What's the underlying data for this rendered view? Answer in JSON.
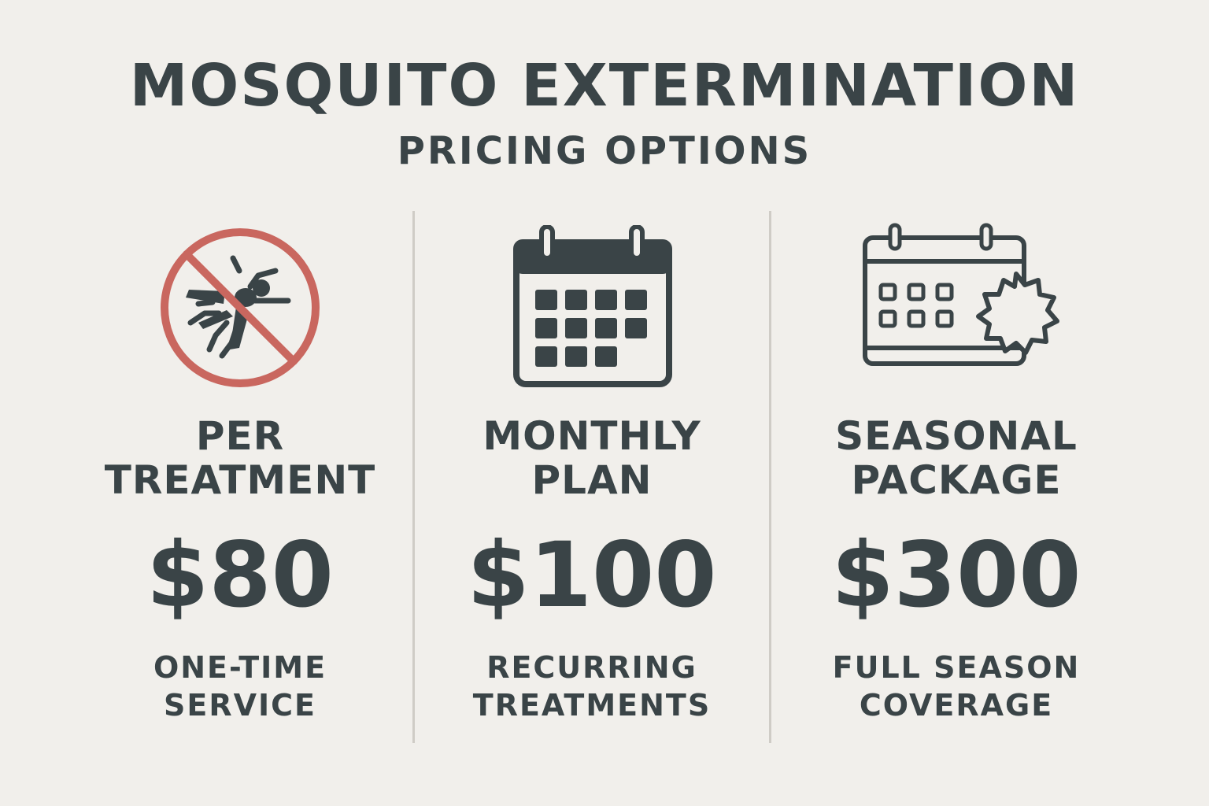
{
  "header": {
    "title": "MOSQUITO EXTERMINATION",
    "subtitle": "PRICING OPTIONS"
  },
  "plans": [
    {
      "icon": "no-mosquito-icon",
      "name_line1": "PER",
      "name_line2": "TREATMENT",
      "price": "$80",
      "desc_line1": "ONE-TIME",
      "desc_line2": "SERVICE"
    },
    {
      "icon": "calendar-icon",
      "name_line1": "MONTHLY",
      "name_line2": "PLAN",
      "price": "$100",
      "desc_line1": "RECURRING",
      "desc_line2": "TREATMENTS"
    },
    {
      "icon": "calendar-sun-icon",
      "name_line1": "SEASONAL",
      "name_line2": "PACKAGE",
      "price": "$300",
      "desc_line1": "FULL SEASON",
      "desc_line2": "COVERAGE"
    }
  ],
  "colors": {
    "background": "#f1efeb",
    "text": "#3a4447",
    "prohibit_red": "#c9675f",
    "divider": "#cfccc6"
  }
}
